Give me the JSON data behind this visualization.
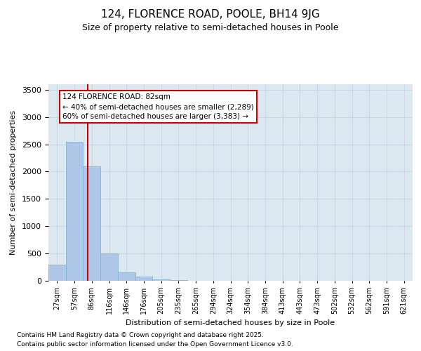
{
  "title": "124, FLORENCE ROAD, POOLE, BH14 9JG",
  "subtitle": "Size of property relative to semi-detached houses in Poole",
  "xlabel": "Distribution of semi-detached houses by size in Poole",
  "ylabel": "Number of semi-detached properties",
  "property_size": 82,
  "property_label": "124 FLORENCE ROAD: 82sqm",
  "pct_smaller": 40,
  "pct_larger": 60,
  "n_smaller": 2289,
  "n_larger": 3383,
  "bin_labels": [
    "27sqm",
    "57sqm",
    "86sqm",
    "116sqm",
    "146sqm",
    "176sqm",
    "205sqm",
    "235sqm",
    "265sqm",
    "294sqm",
    "324sqm",
    "354sqm",
    "384sqm",
    "413sqm",
    "443sqm",
    "473sqm",
    "502sqm",
    "532sqm",
    "562sqm",
    "591sqm",
    "621sqm"
  ],
  "bar_values": [
    300,
    2540,
    2100,
    500,
    150,
    80,
    30,
    10,
    5,
    0,
    0,
    0,
    0,
    0,
    0,
    0,
    0,
    0,
    0,
    0,
    0
  ],
  "bar_color": "#aec6e8",
  "bar_edge_color": "#7aafd4",
  "vline_color": "#cc0000",
  "vline_x": 1.75,
  "grid_color": "#c8d8e8",
  "bg_color": "#dce8f0",
  "annotation_box_edge": "#cc0000",
  "ylim": [
    0,
    3600
  ],
  "yticks": [
    0,
    500,
    1000,
    1500,
    2000,
    2500,
    3000,
    3500
  ],
  "footer_line1": "Contains HM Land Registry data © Crown copyright and database right 2025.",
  "footer_line2": "Contains public sector information licensed under the Open Government Licence v3.0."
}
